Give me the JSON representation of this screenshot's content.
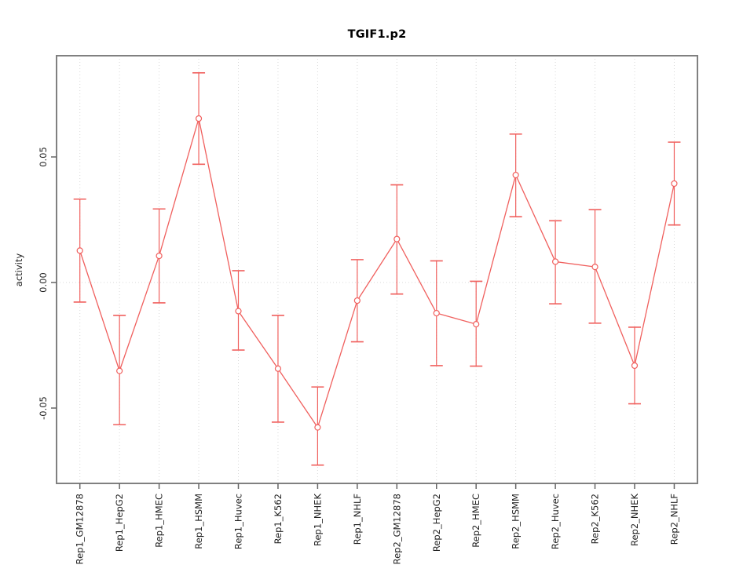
{
  "chart_data": {
    "type": "line",
    "title": "TGIF1.p2",
    "ylabel": "activity",
    "xlabel": "",
    "legend_position": "none",
    "grid": "dotted vertical gridline at each category; dotted horizontal line at y=0",
    "point_marker": "open-circle",
    "categories": [
      "Rep1_GM12878",
      "Rep1_HepG2",
      "Rep1_HMEC",
      "Rep1_HSMM",
      "Rep1_Huvec",
      "Rep1_K562",
      "Rep1_NHEK",
      "Rep1_NHLF",
      "Rep2_GM12878",
      "Rep2_HepG2",
      "Rep2_HMEC",
      "Rep2_HSMM",
      "Rep2_Huvec",
      "Rep2_K562",
      "Rep2_NHEK",
      "Rep2_NHLF"
    ],
    "series": [
      {
        "name": "activity",
        "values": [
          0.0127,
          -0.0352,
          0.0106,
          0.0653,
          -0.0114,
          -0.0343,
          -0.0577,
          -0.0072,
          0.0173,
          -0.0122,
          -0.0166,
          0.0428,
          0.0083,
          0.0062,
          -0.0331,
          0.0394
        ],
        "ci_low": [
          -0.0078,
          -0.0566,
          -0.0081,
          0.0471,
          -0.0269,
          -0.0556,
          -0.0727,
          -0.0236,
          -0.0046,
          -0.0331,
          -0.0333,
          0.0262,
          -0.0085,
          -0.0162,
          -0.0483,
          0.0229
        ],
        "ci_high": [
          0.0332,
          -0.0131,
          0.0293,
          0.0835,
          0.0047,
          -0.0131,
          -0.0416,
          0.0091,
          0.0389,
          0.0086,
          0.0005,
          0.0591,
          0.0246,
          0.029,
          -0.0178,
          0.0559
        ]
      }
    ],
    "yticks": [
      -0.05,
      0,
      0.05
    ],
    "ytick_labels": [
      "-0.05",
      "0.00",
      "0.05"
    ],
    "ylim": [
      -0.08,
      0.09
    ],
    "colors": {
      "series": "#f0605e",
      "frame": "#808080",
      "tick": "#666666",
      "grid": "#d8d8d8",
      "text": "#1f1f1f",
      "background": "#ffffff"
    }
  }
}
